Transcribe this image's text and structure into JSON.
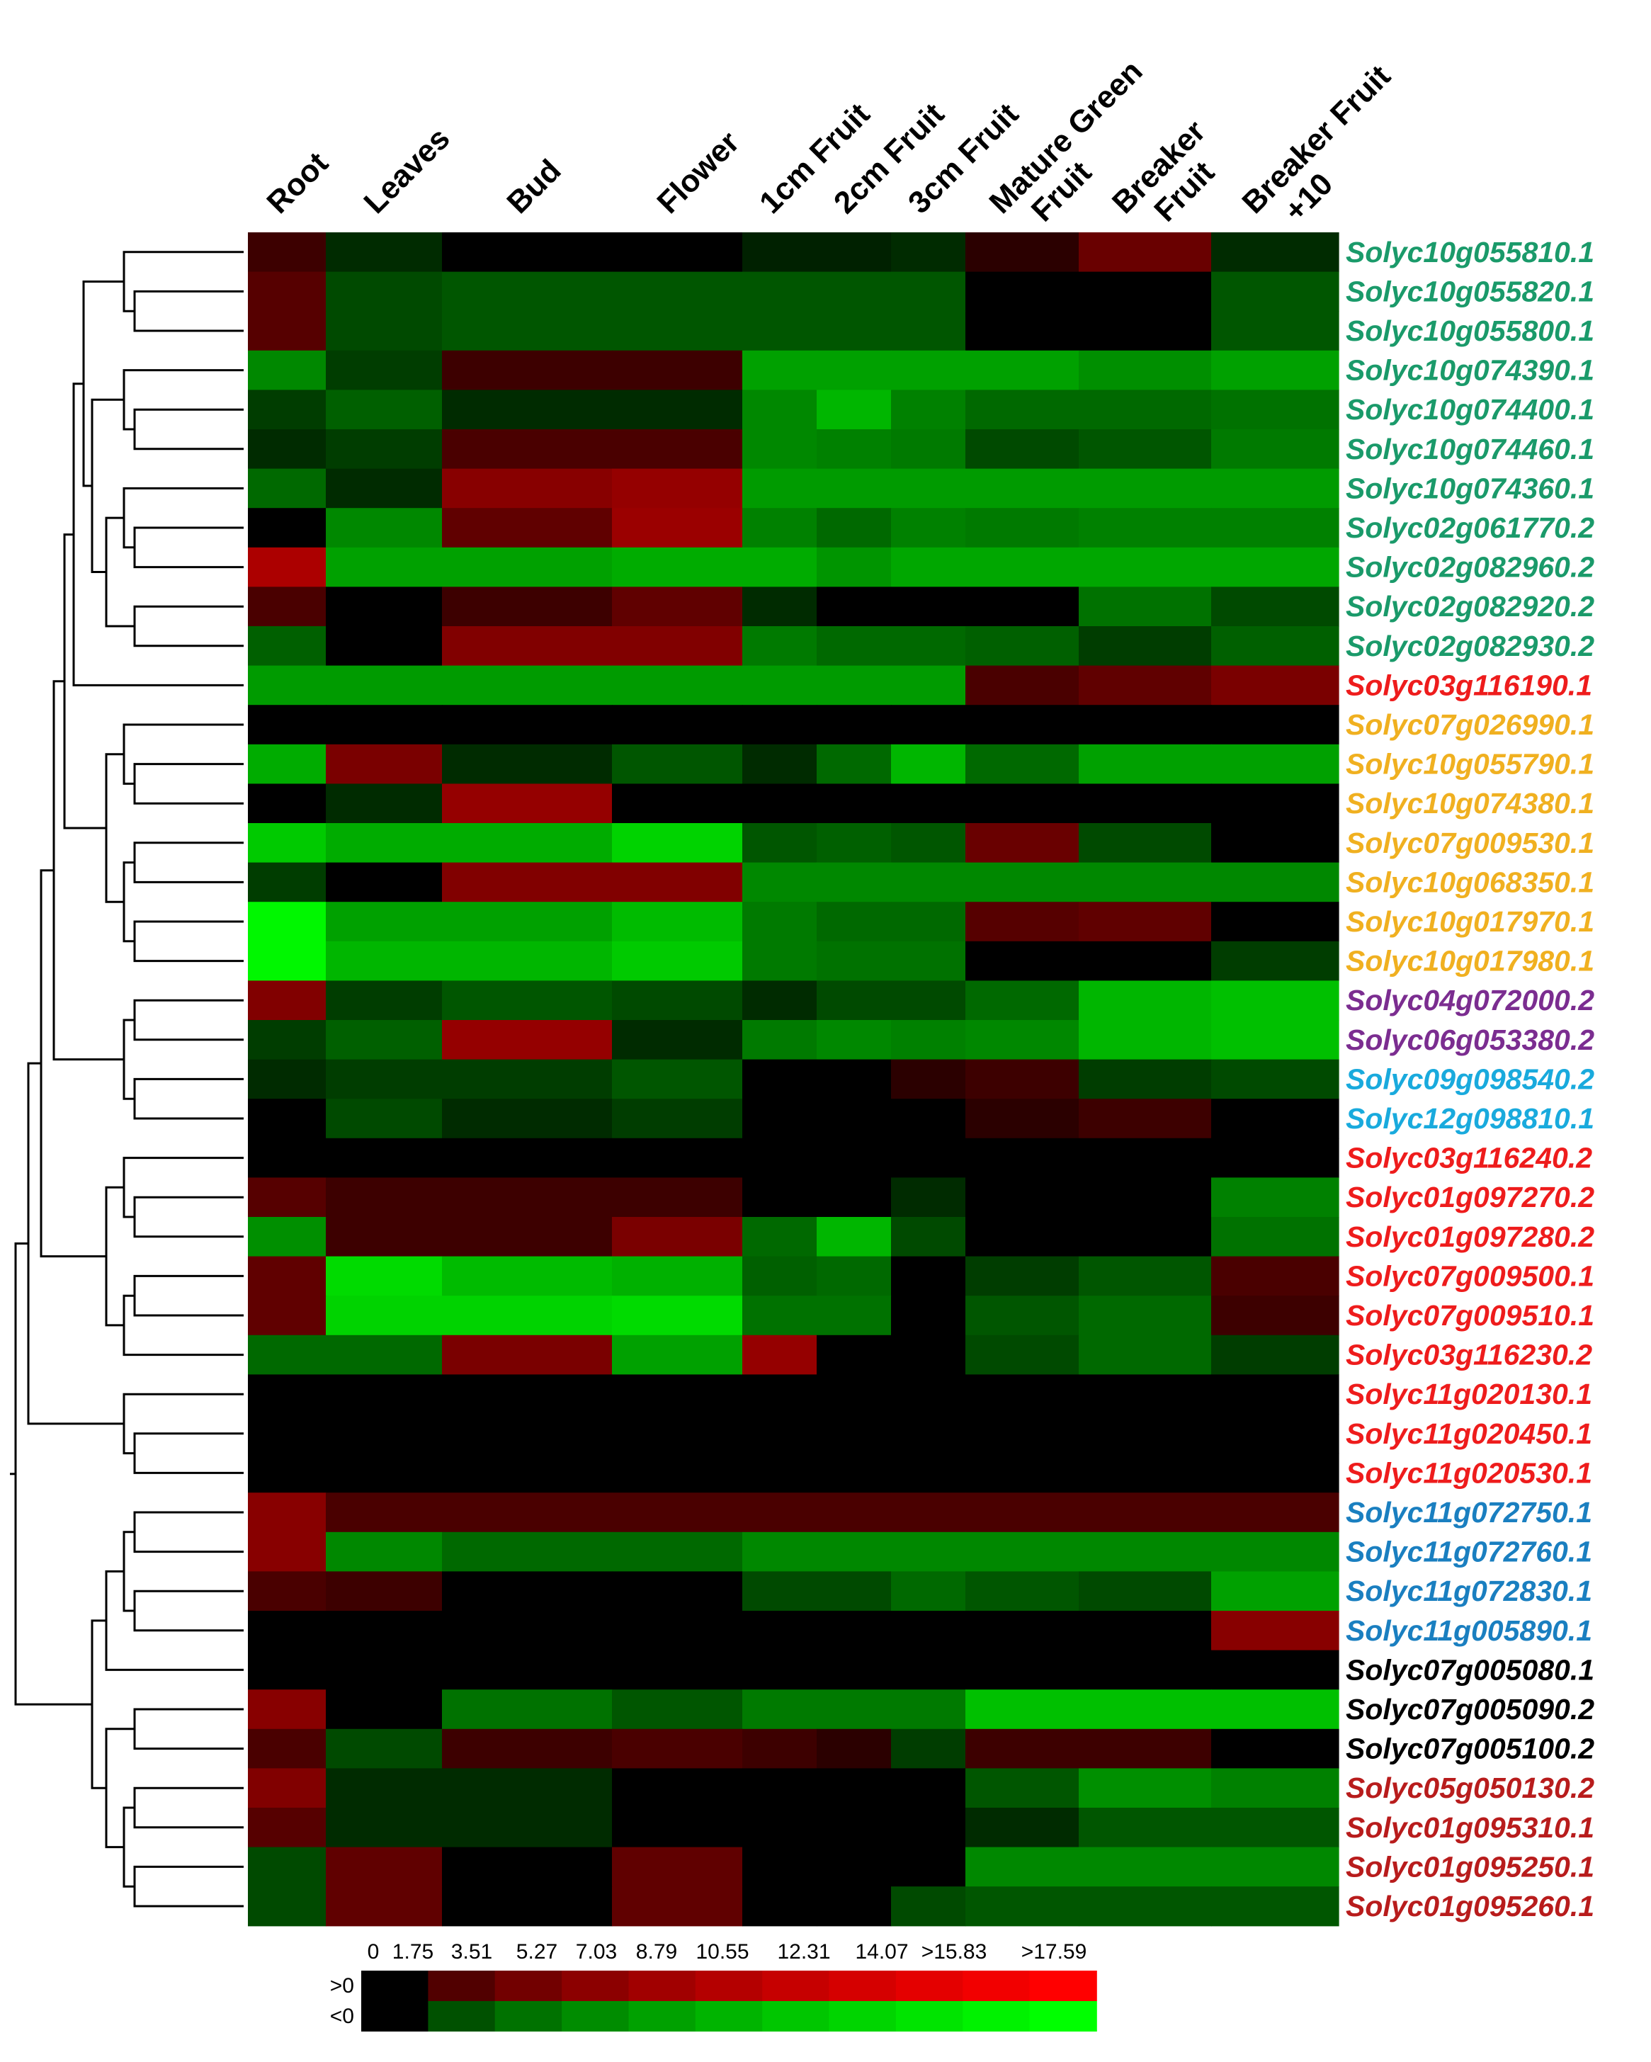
{
  "chart_data": {
    "type": "heatmap",
    "columns": [
      "Root",
      "Leaves",
      "Bud",
      "Flower",
      "1cm Fruit",
      "2cm Fruit",
      "3cm Fruit",
      "Mature Green Fruit",
      "Breaker Fruit",
      "Breaker Fruit +10"
    ],
    "column_label_lines": [
      [
        "Root"
      ],
      [
        "Leaves"
      ],
      [
        "Bud"
      ],
      [
        "Flower"
      ],
      [
        "1cm Fruit"
      ],
      [
        "2cm Fruit"
      ],
      [
        "3cm Fruit"
      ],
      [
        "Mature Green",
        "Fruit"
      ],
      [
        "Breaker",
        "Fruit"
      ],
      [
        "Breaker Fruit",
        "+10"
      ]
    ],
    "rows": [
      {
        "gene": "Solyc10g055810.1",
        "color": "#1a9a6a",
        "values": [
          -1,
          0.5,
          0,
          0,
          0.3,
          0.3,
          0.5,
          -0.5,
          -3,
          0.5
        ]
      },
      {
        "gene": "Solyc10g055820.1",
        "color": "#1a9a6a",
        "values": [
          -2,
          1.5,
          2,
          2,
          2,
          2,
          2,
          0,
          0,
          2
        ]
      },
      {
        "gene": "Solyc10g055800.1",
        "color": "#1a9a6a",
        "values": [
          -2,
          1.5,
          2,
          2,
          2,
          2,
          2,
          0,
          0,
          2
        ]
      },
      {
        "gene": "Solyc10g074390.1",
        "color": "#1a9a6a",
        "values": [
          5,
          1,
          -1,
          -1,
          7,
          7,
          7,
          7,
          5.5,
          7
        ]
      },
      {
        "gene": "Solyc10g074400.1",
        "color": "#1a9a6a",
        "values": [
          1,
          2.5,
          0.5,
          0.5,
          5,
          9,
          4.5,
          3,
          3,
          3.5
        ]
      },
      {
        "gene": "Solyc10g074460.1",
        "color": "#1a9a6a",
        "values": [
          0.5,
          1,
          -1.5,
          -1.5,
          5,
          4.5,
          4,
          1.5,
          2,
          4
        ]
      },
      {
        "gene": "Solyc10g074360.1",
        "color": "#1a9a6a",
        "values": [
          3,
          0.5,
          -5,
          -6,
          6.5,
          6.5,
          6.5,
          6.5,
          6.5,
          6.5
        ]
      },
      {
        "gene": "Solyc02g061770.2",
        "color": "#1a9a6a",
        "values": [
          0,
          5,
          -2.5,
          -6.5,
          4.5,
          3,
          4.5,
          4,
          4.5,
          4.5
        ]
      },
      {
        "gene": "Solyc02g082960.2",
        "color": "#1a9a6a",
        "values": [
          -8,
          7,
          7,
          8,
          8,
          6,
          7.5,
          7.5,
          7.5,
          7.5
        ]
      },
      {
        "gene": "Solyc02g082920.2",
        "color": "#1a9a6a",
        "values": [
          -1.5,
          0,
          -1,
          -2.5,
          0.5,
          0,
          0,
          0,
          3.5,
          1.5
        ]
      },
      {
        "gene": "Solyc02g082930.2",
        "color": "#1a9a6a",
        "values": [
          2.5,
          0,
          -4.5,
          -4.5,
          4,
          3,
          3,
          2.5,
          1,
          2.5
        ]
      },
      {
        "gene": "Solyc03g116190.1",
        "color": "#ee1c1c",
        "values": [
          6.5,
          6.5,
          6.5,
          6.5,
          6.5,
          6.5,
          6.5,
          -1.5,
          -2.5,
          -4
        ]
      },
      {
        "gene": "Solyc07g026990.1",
        "color": "#f0b020",
        "values": [
          0,
          0,
          0,
          0,
          0,
          0,
          0,
          0,
          0,
          0
        ]
      },
      {
        "gene": "Solyc10g055790.1",
        "color": "#f0b020",
        "values": [
          8,
          -4,
          0.5,
          2,
          0.5,
          3,
          9,
          3,
          7,
          7
        ]
      },
      {
        "gene": "Solyc10g074380.1",
        "color": "#f0b020",
        "values": [
          0,
          0.5,
          -6,
          0,
          0,
          0,
          0,
          0,
          0,
          0
        ]
      },
      {
        "gene": "Solyc07g009530.1",
        "color": "#f0b020",
        "values": [
          11,
          8,
          8,
          12,
          2,
          2.5,
          2,
          -3,
          1.5,
          0
        ]
      },
      {
        "gene": "Solyc10g068350.1",
        "color": "#f0b020",
        "values": [
          1,
          0,
          -4.5,
          -4.5,
          5,
          5,
          5,
          5,
          5,
          5
        ]
      },
      {
        "gene": "Solyc10g017970.1",
        "color": "#f0b020",
        "values": [
          16.5,
          7,
          7,
          9.5,
          4,
          3,
          3,
          -2,
          -2.5,
          0
        ]
      },
      {
        "gene": "Solyc10g017980.1",
        "color": "#f0b020",
        "values": [
          16.5,
          9,
          9,
          11,
          4,
          3.5,
          3.5,
          0,
          0,
          1
        ]
      },
      {
        "gene": "Solyc04g072000.2",
        "color": "#7b2d90",
        "values": [
          -4.5,
          1,
          2,
          1.5,
          0.5,
          1.5,
          1.5,
          3,
          9,
          10
        ]
      },
      {
        "gene": "Solyc06g053380.2",
        "color": "#7b2d90",
        "values": [
          1,
          2.5,
          -6,
          0.5,
          4,
          5,
          4.5,
          5,
          9,
          10
        ]
      },
      {
        "gene": "Solyc09g098540.2",
        "color": "#19aadd",
        "values": [
          0.5,
          1,
          1,
          2,
          0,
          0,
          -0.5,
          -1,
          1,
          1.5
        ]
      },
      {
        "gene": "Solyc12g098810.1",
        "color": "#19aadd",
        "values": [
          0,
          1.5,
          0.5,
          1,
          0,
          0,
          0,
          -0.5,
          -1,
          0
        ]
      },
      {
        "gene": "Solyc03g116240.2",
        "color": "#ee1c1c",
        "values": [
          0,
          0,
          0,
          0,
          0,
          0,
          0,
          0,
          0,
          0
        ]
      },
      {
        "gene": "Solyc01g097270.2",
        "color": "#ee1c1c",
        "values": [
          -2,
          -1,
          -1,
          -1,
          0,
          0,
          0.5,
          0,
          0,
          4.5
        ]
      },
      {
        "gene": "Solyc01g097280.2",
        "color": "#ee1c1c",
        "values": [
          5.5,
          -1,
          -1,
          -4,
          3,
          9,
          1.5,
          0,
          0,
          3.5
        ]
      },
      {
        "gene": "Solyc07g009500.1",
        "color": "#ee1c1c",
        "values": [
          -2.5,
          13,
          9.5,
          8.5,
          2.5,
          3,
          0,
          1,
          2,
          -1.5
        ]
      },
      {
        "gene": "Solyc07g009510.1",
        "color": "#ee1c1c",
        "values": [
          -2.5,
          12,
          12,
          13,
          3.5,
          3.5,
          0,
          2,
          3,
          -1
        ]
      },
      {
        "gene": "Solyc03g116230.2",
        "color": "#ee1c1c",
        "values": [
          3,
          3,
          -4,
          7,
          -6,
          0,
          0,
          1.5,
          3,
          1
        ]
      },
      {
        "gene": "Solyc11g020130.1",
        "color": "#ee1c1c",
        "values": [
          0,
          0,
          0,
          0,
          0,
          0,
          0,
          0,
          0,
          0
        ]
      },
      {
        "gene": "Solyc11g020450.1",
        "color": "#ee1c1c",
        "values": [
          0,
          0,
          0,
          0,
          0,
          0,
          0,
          0,
          0,
          0
        ]
      },
      {
        "gene": "Solyc11g020530.1",
        "color": "#ee1c1c",
        "values": [
          0,
          0,
          0,
          0,
          0,
          0,
          0,
          0,
          0,
          0
        ]
      },
      {
        "gene": "Solyc11g072750.1",
        "color": "#1a7fc0",
        "values": [
          -5,
          -1.5,
          -1.5,
          -1.5,
          -1.5,
          -1.5,
          -1.5,
          -1.5,
          -1.5,
          -1.5
        ]
      },
      {
        "gene": "Solyc11g072760.1",
        "color": "#1a7fc0",
        "values": [
          -5,
          5,
          3,
          3,
          5,
          5,
          5,
          5,
          5,
          5
        ]
      },
      {
        "gene": "Solyc11g072830.1",
        "color": "#1a7fc0",
        "values": [
          -1.5,
          -1,
          0,
          0,
          1.5,
          1.5,
          3,
          2,
          1.5,
          7
        ]
      },
      {
        "gene": "Solyc11g005890.1",
        "color": "#1a7fc0",
        "values": [
          0,
          0,
          0,
          0,
          0,
          0,
          0,
          0,
          0,
          -5
        ]
      },
      {
        "gene": "Solyc07g005080.1",
        "color": "#000000",
        "values": [
          0,
          0,
          0,
          0,
          0,
          0,
          0,
          0,
          0,
          0
        ]
      },
      {
        "gene": "Solyc07g005090.2",
        "color": "#000000",
        "values": [
          -5,
          0,
          3.5,
          2,
          4,
          4,
          4,
          10,
          10,
          10
        ]
      },
      {
        "gene": "Solyc07g005100.2",
        "color": "#000000",
        "values": [
          -1.5,
          1.5,
          -1,
          -1.5,
          -1,
          -0.5,
          1,
          -1,
          -1,
          0
        ]
      },
      {
        "gene": "Solyc05g050130.2",
        "color": "#b81c1c",
        "values": [
          -4.5,
          0.5,
          0.5,
          0,
          0,
          0,
          0,
          2,
          5.5,
          4.5
        ]
      },
      {
        "gene": "Solyc01g095310.1",
        "color": "#b81c1c",
        "values": [
          -2,
          0.5,
          0.5,
          0,
          0,
          0,
          0,
          0.5,
          2,
          2
        ]
      },
      {
        "gene": "Solyc01g095250.1",
        "color": "#b81c1c",
        "values": [
          1.5,
          -2.5,
          0,
          -2.5,
          0,
          0,
          0,
          5,
          5,
          5
        ]
      },
      {
        "gene": "Solyc01g095260.1",
        "color": "#b81c1c",
        "values": [
          1.5,
          -2.5,
          0,
          -2.5,
          0,
          0,
          1.5,
          2,
          2,
          2
        ]
      }
    ],
    "color_scale": {
      "positive_row_label": ">0",
      "negative_row_label": "<0",
      "tick_labels": [
        "0",
        "1.75",
        "3.51",
        "5.27",
        "7.03",
        "8.79",
        "10.55",
        "12.31",
        "14.07",
        ">15.83",
        ">17.59"
      ],
      "positive_color_scheme": "red",
      "negative_color_scheme": "green",
      "max_value": 17.59
    }
  }
}
